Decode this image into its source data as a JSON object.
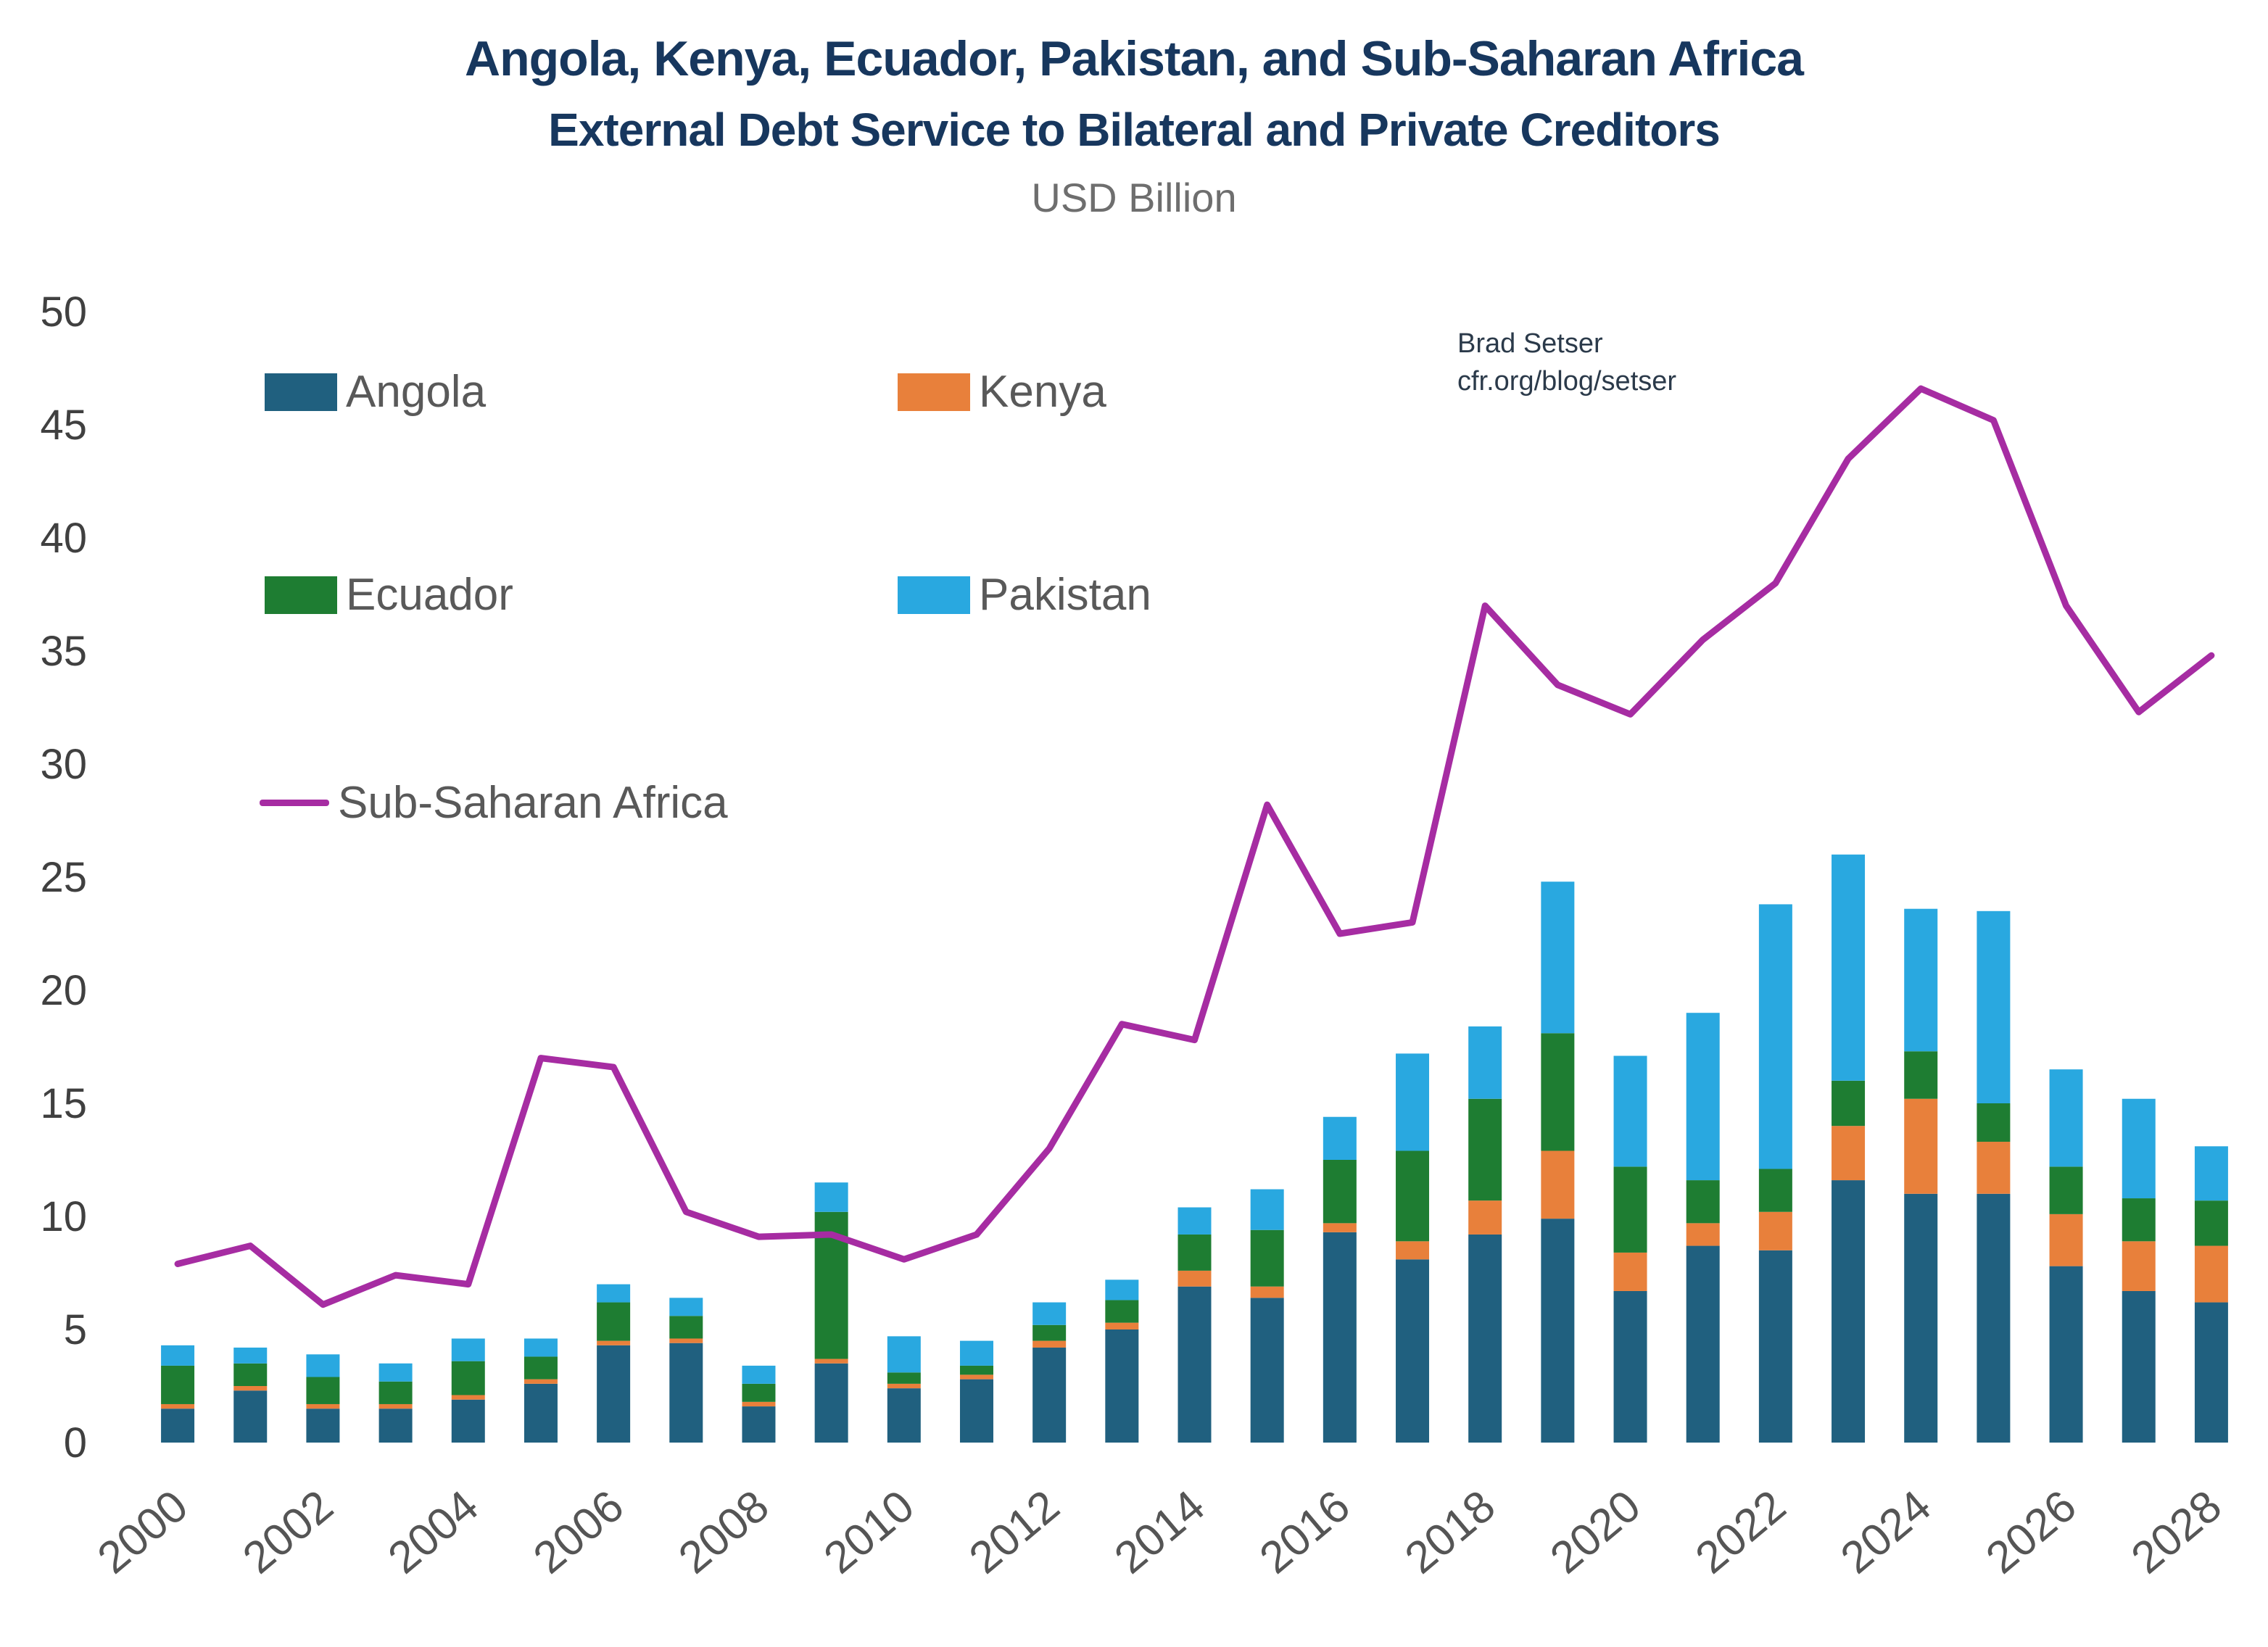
{
  "chart_data": {
    "type": "bar",
    "stacked": true,
    "title": "Angola, Kenya, Ecuador, Pakistan, and Sub-Saharan Africa",
    "subtitle": "External Debt Service to Bilateral and Private Creditors",
    "units": "USD Billion",
    "annotation": {
      "line1": "Brad Setser",
      "line2": "cfr.org/blog/setser"
    },
    "x": [
      2000,
      2001,
      2002,
      2003,
      2004,
      2005,
      2006,
      2007,
      2008,
      2009,
      2010,
      2011,
      2012,
      2013,
      2014,
      2015,
      2016,
      2017,
      2018,
      2019,
      2020,
      2021,
      2022,
      2023,
      2024,
      2025,
      2026,
      2027,
      2028
    ],
    "xticks": [
      2000,
      2002,
      2004,
      2006,
      2008,
      2010,
      2012,
      2014,
      2016,
      2018,
      2020,
      2022,
      2024,
      2026,
      2028
    ],
    "ylim": [
      0,
      50
    ],
    "yticks": [
      0,
      5,
      10,
      15,
      20,
      25,
      30,
      35,
      40,
      45,
      50
    ],
    "grid": false,
    "legend_position": "upper-left-inside",
    "series": [
      {
        "name": "Angola",
        "color": "#20607f",
        "values": [
          1.5,
          2.3,
          1.5,
          1.5,
          1.9,
          2.6,
          4.3,
          4.4,
          1.6,
          3.5,
          2.4,
          2.8,
          4.2,
          5.0,
          6.9,
          6.4,
          9.3,
          8.1,
          9.2,
          9.9,
          6.7,
          8.7,
          8.5,
          11.6,
          11.0,
          11.0,
          7.8,
          6.7,
          6.2
        ]
      },
      {
        "name": "Kenya",
        "color": "#e8803b",
        "values": [
          0.2,
          0.2,
          0.2,
          0.2,
          0.2,
          0.2,
          0.2,
          0.2,
          0.2,
          0.2,
          0.2,
          0.2,
          0.3,
          0.3,
          0.7,
          0.5,
          0.4,
          0.8,
          1.5,
          3.0,
          1.7,
          1.0,
          1.7,
          2.4,
          4.2,
          2.3,
          2.3,
          2.2,
          2.5
        ]
      },
      {
        "name": "Ecuador",
        "color": "#1e7d32",
        "values": [
          1.7,
          1.0,
          1.2,
          1.0,
          1.5,
          1.0,
          1.7,
          1.0,
          0.8,
          6.5,
          0.5,
          0.4,
          0.7,
          1.0,
          1.6,
          2.5,
          2.8,
          4.0,
          4.5,
          5.2,
          3.8,
          1.9,
          1.9,
          2.0,
          2.1,
          1.7,
          2.1,
          1.9,
          2.0
        ]
      },
      {
        "name": "Pakistan",
        "color": "#29a8e0",
        "values": [
          0.9,
          0.7,
          1.0,
          0.8,
          1.0,
          0.8,
          0.8,
          0.8,
          0.8,
          1.3,
          1.6,
          1.1,
          1.0,
          0.9,
          1.2,
          1.8,
          1.9,
          4.3,
          3.2,
          6.7,
          4.9,
          7.4,
          11.7,
          10.0,
          6.3,
          8.5,
          4.3,
          4.4,
          2.4
        ]
      }
    ],
    "line_series": {
      "name": "Sub-Saharan Africa",
      "color": "#a62ca2",
      "values": [
        7.9,
        8.7,
        6.1,
        7.4,
        7.0,
        17.0,
        16.6,
        10.2,
        9.1,
        9.2,
        8.1,
        9.2,
        13.0,
        18.5,
        17.8,
        28.2,
        22.5,
        23.0,
        37.0,
        33.5,
        32.2,
        35.5,
        38.0,
        43.5,
        46.6,
        45.2,
        37.0,
        32.3,
        34.8
      ]
    },
    "palette": {
      "title_navy": "#17375e",
      "axis_gray": "#555555",
      "units_gray": "#6e6e6e",
      "legend_gray": "#595959"
    }
  }
}
